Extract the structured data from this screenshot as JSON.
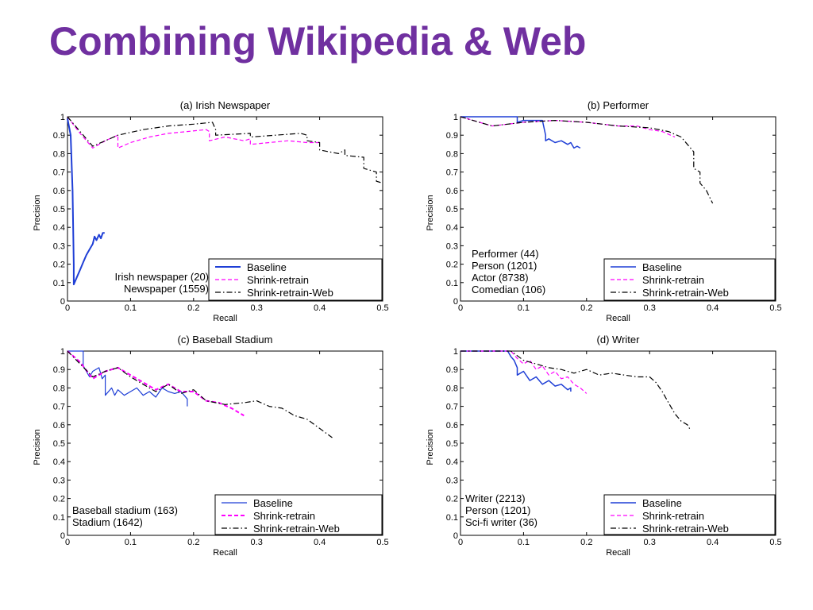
{
  "slide": {
    "title": "Combining Wikipedia & Web"
  },
  "colors": {
    "title": "#7030a0",
    "baseline": "#1f3fd6",
    "shrink_retrain": "#ff00ff",
    "shrink_retrain_web": "#000000"
  },
  "chart_data": [
    {
      "id": "a",
      "type": "line",
      "title": "(a) Irish Newspaper",
      "xlabel": "Recall",
      "ylabel": "Precision",
      "xlim": [
        0,
        0.5
      ],
      "ylim": [
        0,
        1
      ],
      "xticks": [
        "0",
        "0.1",
        "0.2",
        "0.3",
        "0.4",
        "0.5"
      ],
      "yticks": [
        "0",
        "0.1",
        "0.2",
        "0.3",
        "0.4",
        "0.5",
        "0.6",
        "0.7",
        "0.8",
        "0.9",
        "1"
      ],
      "legend_position": "bottom-right",
      "annotation": [
        "Irish newspaper (20)",
        "Newspaper (1559)"
      ],
      "series": [
        {
          "name": "Baseline",
          "color": "#1f3fd6",
          "dash": "solid",
          "width": 2,
          "x": [
            0,
            0.005,
            0.008,
            0.01,
            0.01,
            0.015,
            0.02,
            0.025,
            0.03,
            0.035,
            0.04,
            0.043,
            0.046,
            0.05,
            0.053,
            0.056,
            0.059
          ],
          "y": [
            0.99,
            0.9,
            0.6,
            0.2,
            0.09,
            0.13,
            0.17,
            0.21,
            0.25,
            0.28,
            0.31,
            0.35,
            0.33,
            0.36,
            0.34,
            0.37,
            0.37
          ]
        },
        {
          "name": "Shrink-retrain",
          "color": "#ff00ff",
          "dash": "dashed",
          "width": 1.2,
          "x": [
            0,
            0.02,
            0.04,
            0.06,
            0.08,
            0.08,
            0.1,
            0.13,
            0.16,
            0.19,
            0.22,
            0.225,
            0.225,
            0.25,
            0.28,
            0.29,
            0.29,
            0.32,
            0.35,
            0.38,
            0.4
          ],
          "y": [
            1,
            0.91,
            0.83,
            0.87,
            0.9,
            0.83,
            0.86,
            0.89,
            0.91,
            0.92,
            0.93,
            0.92,
            0.87,
            0.89,
            0.87,
            0.88,
            0.85,
            0.86,
            0.87,
            0.86,
            0.86
          ]
        },
        {
          "name": "Shrink-retrain-Web",
          "color": "#000000",
          "dash": "dashdot",
          "width": 1.2,
          "x": [
            0,
            0.02,
            0.04,
            0.06,
            0.08,
            0.12,
            0.16,
            0.2,
            0.23,
            0.235,
            0.235,
            0.29,
            0.29,
            0.33,
            0.37,
            0.38,
            0.38,
            0.4,
            0.4,
            0.43,
            0.44,
            0.44,
            0.47,
            0.47,
            0.49,
            0.49,
            0.5
          ],
          "y": [
            1,
            0.92,
            0.84,
            0.87,
            0.9,
            0.93,
            0.95,
            0.96,
            0.97,
            0.93,
            0.9,
            0.91,
            0.89,
            0.9,
            0.91,
            0.9,
            0.87,
            0.86,
            0.82,
            0.8,
            0.82,
            0.79,
            0.78,
            0.72,
            0.7,
            0.65,
            0.64
          ]
        }
      ]
    },
    {
      "id": "b",
      "type": "line",
      "title": "(b) Performer",
      "xlabel": "Recall",
      "ylabel": "Precision",
      "xlim": [
        0,
        0.5
      ],
      "ylim": [
        0,
        1
      ],
      "xticks": [
        "0",
        "0.1",
        "0.2",
        "0.3",
        "0.4",
        "0.5"
      ],
      "yticks": [
        "0",
        "0.1",
        "0.2",
        "0.3",
        "0.4",
        "0.5",
        "0.6",
        "0.7",
        "0.8",
        "0.9",
        "1"
      ],
      "legend_position": "bottom-right",
      "annotation": [
        "Performer (44)",
        "Person (1201)",
        "Actor (8738)",
        "Comedian (106)"
      ],
      "series": [
        {
          "name": "Baseline",
          "color": "#1f3fd6",
          "dash": "solid",
          "width": 1.5,
          "x": [
            0,
            0.09,
            0.09,
            0.1,
            0.13,
            0.135,
            0.135,
            0.14,
            0.15,
            0.16,
            0.17,
            0.175,
            0.18,
            0.185,
            0.19
          ],
          "y": [
            1,
            1,
            0.97,
            0.98,
            0.98,
            0.9,
            0.87,
            0.88,
            0.86,
            0.87,
            0.85,
            0.86,
            0.83,
            0.84,
            0.83
          ]
        },
        {
          "name": "Shrink-retrain",
          "color": "#ff00ff",
          "dash": "dashed",
          "width": 1.2,
          "x": [
            0,
            0.02,
            0.05,
            0.1,
            0.15,
            0.2,
            0.25,
            0.28,
            0.3,
            0.32,
            0.34
          ],
          "y": [
            1,
            0.98,
            0.95,
            0.97,
            0.98,
            0.97,
            0.95,
            0.95,
            0.93,
            0.92,
            0.89
          ]
        },
        {
          "name": "Shrink-retrain-Web",
          "color": "#000000",
          "dash": "dashdot",
          "width": 1.2,
          "x": [
            0,
            0.05,
            0.1,
            0.15,
            0.2,
            0.25,
            0.3,
            0.33,
            0.35,
            0.36,
            0.37,
            0.37,
            0.38,
            0.38,
            0.39,
            0.4
          ],
          "y": [
            1,
            0.95,
            0.97,
            0.98,
            0.97,
            0.95,
            0.94,
            0.92,
            0.89,
            0.85,
            0.81,
            0.72,
            0.7,
            0.64,
            0.6,
            0.53
          ]
        }
      ]
    },
    {
      "id": "c",
      "type": "line",
      "title": "(c) Baseball Stadium",
      "xlabel": "Recall",
      "ylabel": "Precision",
      "xlim": [
        0,
        0.5
      ],
      "ylim": [
        0,
        1
      ],
      "xticks": [
        "0",
        "0.1",
        "0.2",
        "0.3",
        "0.4",
        "0.5"
      ],
      "yticks": [
        "0",
        "0.1",
        "0.2",
        "0.3",
        "0.4",
        "0.5",
        "0.6",
        "0.7",
        "0.8",
        "0.9",
        "1"
      ],
      "legend_position": "bottom-right",
      "annotation": [
        "Baseball stadium (163)",
        "Stadium (1642)"
      ],
      "series": [
        {
          "name": "Baseline",
          "color": "#1f3fd6",
          "dash": "solid",
          "width": 1.2,
          "x": [
            0,
            0.025,
            0.025,
            0.035,
            0.04,
            0.05,
            0.055,
            0.06,
            0.06,
            0.07,
            0.075,
            0.08,
            0.09,
            0.1,
            0.11,
            0.12,
            0.13,
            0.14,
            0.15,
            0.16,
            0.17,
            0.18,
            0.19,
            0.19
          ],
          "y": [
            1,
            1,
            0.92,
            0.86,
            0.89,
            0.91,
            0.85,
            0.87,
            0.76,
            0.8,
            0.76,
            0.79,
            0.76,
            0.78,
            0.8,
            0.76,
            0.78,
            0.75,
            0.8,
            0.78,
            0.77,
            0.78,
            0.74,
            0.7
          ]
        },
        {
          "name": "Shrink-retrain",
          "color": "#ff00ff",
          "dash": "dashed",
          "width": 2,
          "x": [
            0,
            0.02,
            0.04,
            0.06,
            0.08,
            0.1,
            0.12,
            0.14,
            0.16,
            0.18,
            0.2,
            0.22,
            0.24,
            0.26,
            0.28
          ],
          "y": [
            1,
            0.94,
            0.85,
            0.89,
            0.91,
            0.87,
            0.83,
            0.79,
            0.82,
            0.78,
            0.78,
            0.73,
            0.72,
            0.69,
            0.65
          ]
        },
        {
          "name": "Shrink-retrain-Web",
          "color": "#000000",
          "dash": "dashdot",
          "width": 1.2,
          "x": [
            0,
            0.02,
            0.04,
            0.06,
            0.08,
            0.1,
            0.12,
            0.14,
            0.16,
            0.18,
            0.2,
            0.22,
            0.25,
            0.28,
            0.3,
            0.32,
            0.34,
            0.36,
            0.38,
            0.4,
            0.42
          ],
          "y": [
            1,
            0.93,
            0.86,
            0.89,
            0.91,
            0.86,
            0.82,
            0.78,
            0.82,
            0.77,
            0.79,
            0.73,
            0.71,
            0.72,
            0.73,
            0.7,
            0.69,
            0.65,
            0.63,
            0.58,
            0.53
          ]
        }
      ]
    },
    {
      "id": "d",
      "type": "line",
      "title": "(d) Writer",
      "xlabel": "Recall",
      "ylabel": "Precision",
      "xlim": [
        0,
        0.5
      ],
      "ylim": [
        0,
        1
      ],
      "xticks": [
        "0",
        "0.1",
        "0.2",
        "0.3",
        "0.4",
        "0.5"
      ],
      "yticks": [
        "0",
        "0.1",
        "0.2",
        "0.3",
        "0.4",
        "0.5",
        "0.6",
        "0.7",
        "0.8",
        "0.9",
        "1"
      ],
      "legend_position": "bottom-right",
      "annotation": [
        "Writer (2213)",
        "Person (1201)",
        "Sci-fi writer (36)"
      ],
      "series": [
        {
          "name": "Baseline",
          "color": "#1f3fd6",
          "dash": "solid",
          "width": 1.5,
          "x": [
            0,
            0.075,
            0.08,
            0.085,
            0.09,
            0.09,
            0.1,
            0.11,
            0.12,
            0.13,
            0.14,
            0.15,
            0.16,
            0.17,
            0.175,
            0.175
          ],
          "y": [
            1,
            1,
            0.97,
            0.95,
            0.91,
            0.87,
            0.89,
            0.84,
            0.86,
            0.82,
            0.84,
            0.81,
            0.82,
            0.79,
            0.8,
            0.78
          ]
        },
        {
          "name": "Shrink-retrain",
          "color": "#ff00ff",
          "dash": "dashed",
          "width": 1.2,
          "x": [
            0,
            0.08,
            0.09,
            0.1,
            0.11,
            0.12,
            0.13,
            0.14,
            0.15,
            0.16,
            0.17,
            0.18,
            0.19,
            0.2
          ],
          "y": [
            1,
            1,
            0.96,
            0.93,
            0.95,
            0.9,
            0.92,
            0.87,
            0.89,
            0.85,
            0.86,
            0.82,
            0.8,
            0.77
          ]
        },
        {
          "name": "Shrink-retrain-Web",
          "color": "#000000",
          "dash": "dashdot",
          "width": 1.2,
          "x": [
            0,
            0.08,
            0.1,
            0.12,
            0.14,
            0.16,
            0.18,
            0.2,
            0.22,
            0.24,
            0.26,
            0.28,
            0.3,
            0.31,
            0.32,
            0.33,
            0.34,
            0.35,
            0.36,
            0.365
          ],
          "y": [
            1,
            1,
            0.95,
            0.93,
            0.91,
            0.9,
            0.88,
            0.9,
            0.87,
            0.88,
            0.87,
            0.86,
            0.86,
            0.83,
            0.78,
            0.72,
            0.66,
            0.62,
            0.6,
            0.57
          ]
        }
      ]
    }
  ]
}
